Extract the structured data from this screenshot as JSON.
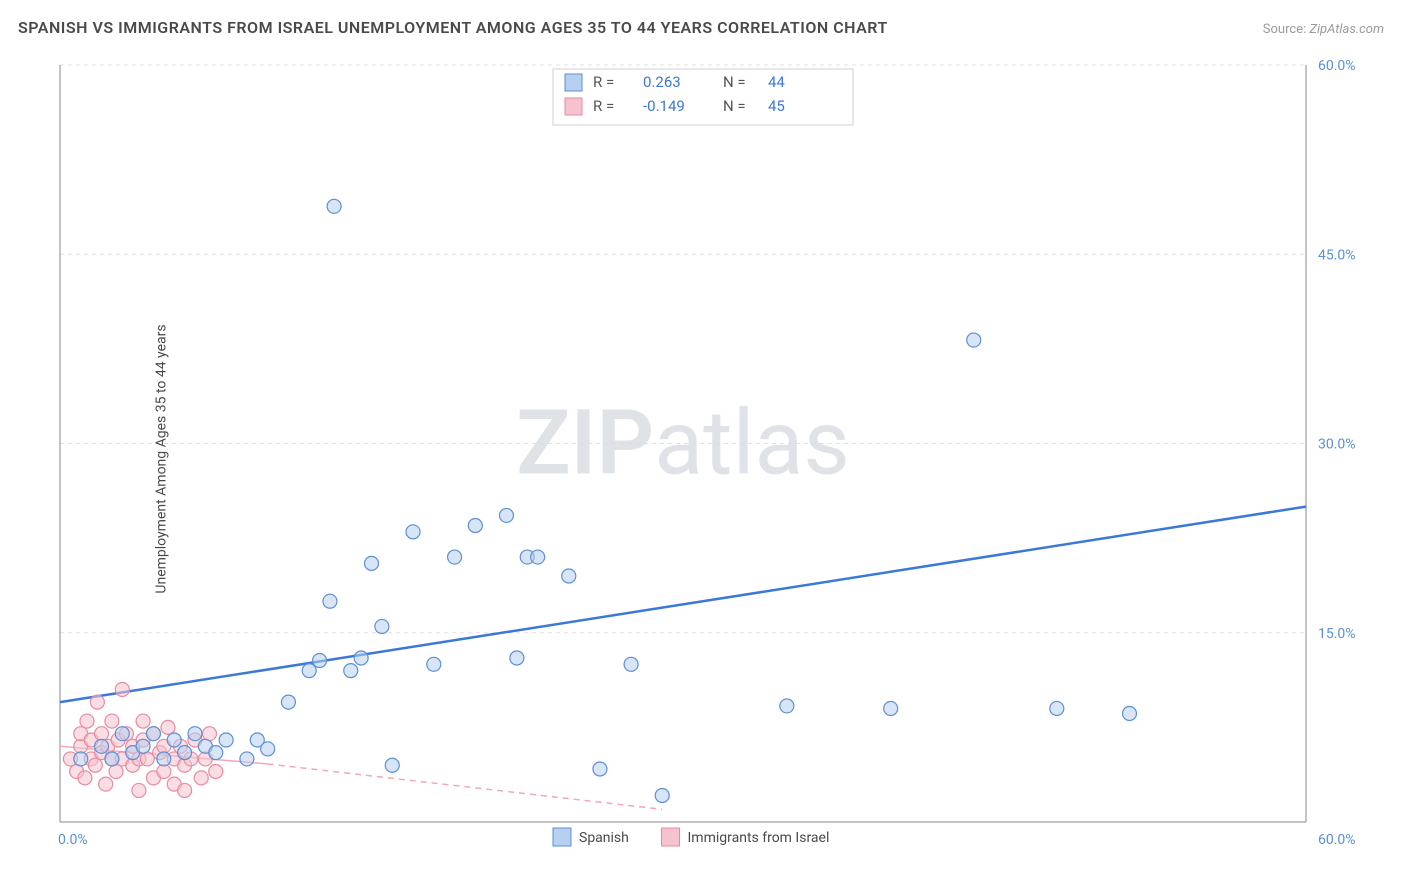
{
  "title": "SPANISH VS IMMIGRANTS FROM ISRAEL UNEMPLOYMENT AMONG AGES 35 TO 44 YEARS CORRELATION CHART",
  "source_label": "Source:",
  "source_value": "ZipAtlas.com",
  "ylabel": "Unemployment Among Ages 35 to 44 years",
  "watermark_prefix": "ZIP",
  "watermark_suffix": "atlas",
  "chart": {
    "type": "scatter",
    "background_color": "#ffffff",
    "grid_color": "#e0e0e0",
    "axis_color": "#888888",
    "xlim": [
      0,
      60
    ],
    "ylim": [
      0,
      60
    ],
    "x_ticks": [
      0,
      60
    ],
    "x_tick_labels": [
      "0.0%",
      "60.0%"
    ],
    "y_ticks": [
      15,
      30,
      45,
      60
    ],
    "y_tick_labels": [
      "15.0%",
      "30.0%",
      "45.0%",
      "60.0%"
    ],
    "marker_radius": 7,
    "marker_stroke_width": 1.2,
    "series": [
      {
        "name": "Spanish",
        "fill_color": "#b8d0ef",
        "stroke_color": "#5b8fd6",
        "fill_opacity": 0.55,
        "r_value": "0.263",
        "n_value": "44",
        "trend": {
          "x1": 0,
          "y1": 9.5,
          "x2": 60,
          "y2": 25.0,
          "color": "#3b78d8",
          "width": 2.5
        },
        "points": [
          [
            1,
            5
          ],
          [
            2,
            6
          ],
          [
            2.5,
            5
          ],
          [
            3,
            7
          ],
          [
            3.5,
            5.5
          ],
          [
            4,
            6
          ],
          [
            4.5,
            7
          ],
          [
            5,
            5
          ],
          [
            5.5,
            6.5
          ],
          [
            6,
            5.5
          ],
          [
            6.5,
            7
          ],
          [
            7,
            6
          ],
          [
            7.5,
            5.5
          ],
          [
            8,
            6.5
          ],
          [
            9,
            5
          ],
          [
            9.5,
            6.5
          ],
          [
            10,
            5.8
          ],
          [
            11,
            9.5
          ],
          [
            12,
            12
          ],
          [
            12.5,
            12.8
          ],
          [
            13,
            17.5
          ],
          [
            14,
            12
          ],
          [
            14.5,
            13
          ],
          [
            15,
            20.5
          ],
          [
            15.5,
            15.5
          ],
          [
            13.2,
            48.8
          ],
          [
            16,
            4.5
          ],
          [
            17,
            23
          ],
          [
            18,
            12.5
          ],
          [
            19,
            21
          ],
          [
            20,
            23.5
          ],
          [
            21.5,
            24.3
          ],
          [
            22,
            13
          ],
          [
            22.5,
            21
          ],
          [
            23,
            21
          ],
          [
            24.5,
            19.5
          ],
          [
            26,
            4.2
          ],
          [
            27.5,
            12.5
          ],
          [
            29,
            2.1
          ],
          [
            35,
            9.2
          ],
          [
            40,
            9
          ],
          [
            44,
            38.2
          ],
          [
            48,
            9
          ],
          [
            51.5,
            8.6
          ]
        ]
      },
      {
        "name": "Immigrants from Israel",
        "fill_color": "#f6c2ce",
        "stroke_color": "#e88ba2",
        "fill_opacity": 0.55,
        "r_value": "-0.149",
        "n_value": "45",
        "trend_solid": {
          "x1": 0,
          "y1": 6.0,
          "x2": 10,
          "y2": 4.6,
          "color": "#f4a6b7",
          "width": 1.5
        },
        "trend_dash": {
          "x1": 10,
          "y1": 4.6,
          "x2": 29,
          "y2": 1.0,
          "color": "#f4a6b7",
          "width": 1.5
        },
        "points": [
          [
            0.5,
            5
          ],
          [
            0.8,
            4
          ],
          [
            1,
            6
          ],
          [
            1,
            7
          ],
          [
            1.2,
            3.5
          ],
          [
            1.3,
            8
          ],
          [
            1.5,
            5
          ],
          [
            1.5,
            6.5
          ],
          [
            1.7,
            4.5
          ],
          [
            1.8,
            9.5
          ],
          [
            2,
            5.5
          ],
          [
            2,
            7
          ],
          [
            2.2,
            3
          ],
          [
            2.3,
            6
          ],
          [
            2.5,
            5
          ],
          [
            2.5,
            8
          ],
          [
            2.7,
            4
          ],
          [
            2.8,
            6.5
          ],
          [
            3,
            5
          ],
          [
            3,
            10.5
          ],
          [
            3.2,
            7
          ],
          [
            3.5,
            4.5
          ],
          [
            3.5,
            6
          ],
          [
            3.8,
            5
          ],
          [
            3.8,
            2.5
          ],
          [
            4,
            6.5
          ],
          [
            4,
            8
          ],
          [
            4.2,
            5
          ],
          [
            4.5,
            3.5
          ],
          [
            4.5,
            7
          ],
          [
            4.8,
            5.5
          ],
          [
            5,
            4
          ],
          [
            5,
            6
          ],
          [
            5.2,
            7.5
          ],
          [
            5.5,
            5
          ],
          [
            5.5,
            3
          ],
          [
            5.8,
            6
          ],
          [
            6,
            4.5
          ],
          [
            6,
            2.5
          ],
          [
            6.3,
            5
          ],
          [
            6.5,
            6.5
          ],
          [
            6.8,
            3.5
          ],
          [
            7,
            5
          ],
          [
            7.2,
            7
          ],
          [
            7.5,
            4
          ]
        ]
      }
    ],
    "stats_box": {
      "border_color": "#cfcfcf",
      "bg_color": "#ffffff",
      "label_color": "#555555",
      "value_color": "#3b78d8",
      "rows": [
        {
          "swatch_fill": "#b8d0ef",
          "swatch_stroke": "#5b8fd6",
          "r_label": "R =",
          "r_val": "0.263",
          "n_label": "N =",
          "n_val": "44"
        },
        {
          "swatch_fill": "#f6c2ce",
          "swatch_stroke": "#e88ba2",
          "r_label": "R =",
          "r_val": "-0.149",
          "n_label": "N =",
          "n_val": "45"
        }
      ]
    },
    "bottom_legend": [
      {
        "swatch_fill": "#b8d0ef",
        "swatch_stroke": "#5b8fd6",
        "label": "Spanish"
      },
      {
        "swatch_fill": "#f6c2ce",
        "swatch_stroke": "#e88ba2",
        "label": "Immigrants from Israel"
      }
    ]
  }
}
